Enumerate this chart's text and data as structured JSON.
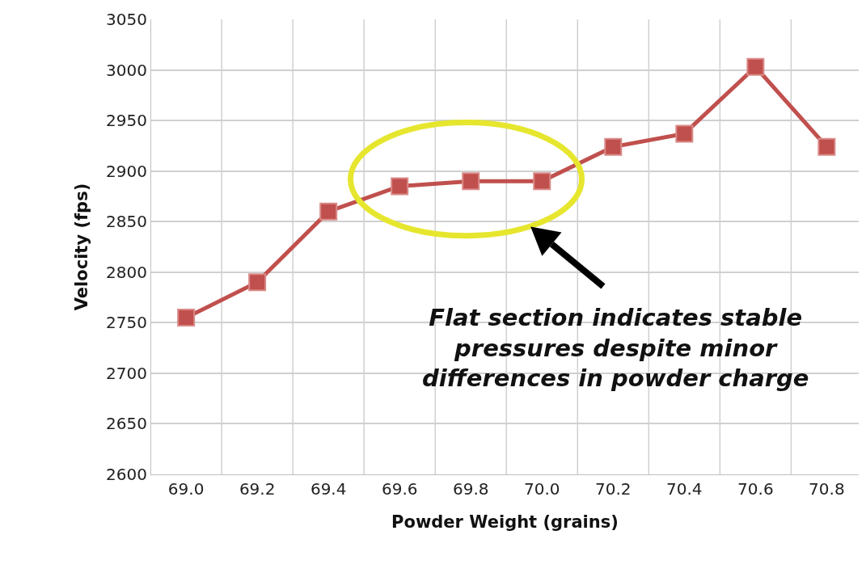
{
  "chart_data": {
    "type": "line",
    "xlabel": "Powder Weight (grains)",
    "ylabel": "Velocity (fps)",
    "categories": [
      "69.0",
      "69.2",
      "69.4",
      "69.6",
      "69.8",
      "70.0",
      "70.2",
      "70.4",
      "70.6",
      "70.8"
    ],
    "values": [
      2755,
      2790,
      2860,
      2885,
      2890,
      2890,
      2924,
      2937,
      3003,
      2924
    ],
    "color": "#c0504d",
    "marker": "square",
    "line_style": "solid",
    "ylim": [
      2600,
      3050
    ],
    "yticks": [
      2600,
      2650,
      2700,
      2750,
      2800,
      2850,
      2900,
      2950,
      3000,
      3050
    ],
    "grid": true,
    "annotations": [
      "Flat section indicates stable\npressures despite minor\ndifferences in powder charge"
    ]
  }
}
